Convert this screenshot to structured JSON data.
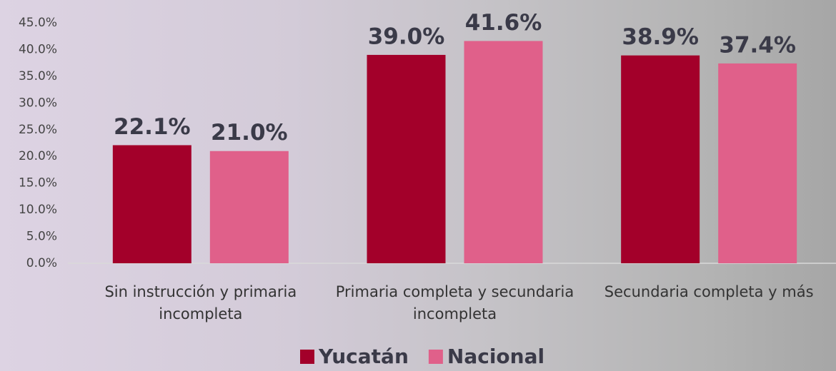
{
  "chart_data": {
    "type": "bar",
    "categories": [
      "Sin instrucción y primaria incompleta",
      "Primaria completa y secundaria incompleta",
      "Secundaria completa y más"
    ],
    "series": [
      {
        "name": "Yucatán",
        "color": "#a3002a",
        "values": [
          22.1,
          39.0,
          38.9
        ],
        "value_labels": [
          "22.1%",
          "39.0%",
          "38.9%"
        ]
      },
      {
        "name": "Nacional",
        "color": "#e0608a",
        "values": [
          21.0,
          41.6,
          37.4
        ],
        "value_labels": [
          "21.0%",
          "41.6%",
          "37.4%"
        ]
      }
    ],
    "ylim": [
      0,
      45
    ],
    "yticks": [
      {
        "value": 0,
        "label": "0.0%"
      },
      {
        "value": 5,
        "label": "5.0%"
      },
      {
        "value": 10,
        "label": "10.0%"
      },
      {
        "value": 15,
        "label": "15.0%"
      },
      {
        "value": 20,
        "label": "20.0%"
      },
      {
        "value": 25,
        "label": "25.0%"
      },
      {
        "value": 30,
        "label": "30.0%"
      },
      {
        "value": 35,
        "label": "35.0%"
      },
      {
        "value": 40,
        "label": "40.0%"
      },
      {
        "value": 45,
        "label": "45.0%"
      }
    ],
    "grid": false,
    "legend": "bottom"
  }
}
